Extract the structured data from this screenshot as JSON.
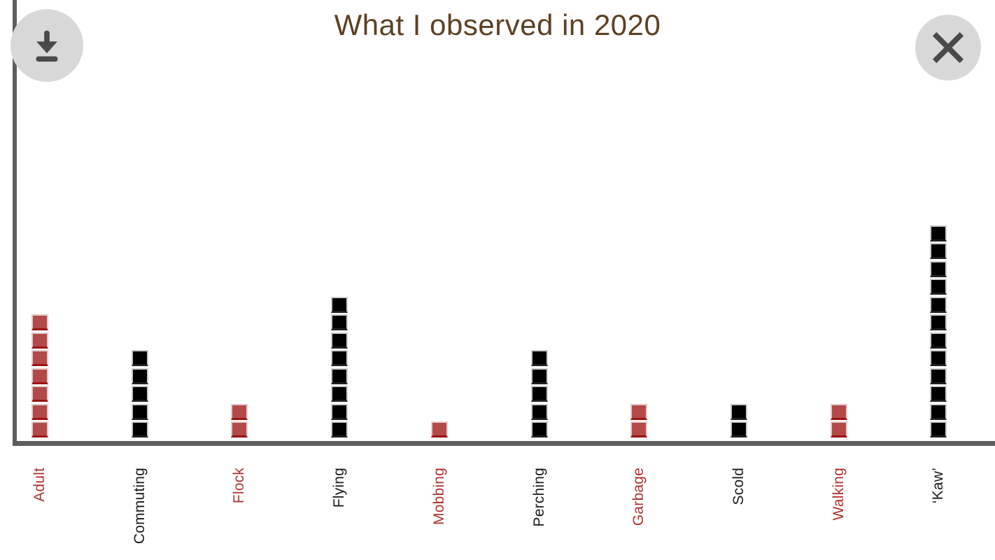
{
  "title": {
    "text": "What I observed in 2020"
  },
  "toolbar": {
    "download_button": {
      "icon": "download-icon"
    },
    "close_button": {
      "icon": "close-icon"
    }
  },
  "colors": {
    "title": "#5d4123",
    "axis": "#5e5e5e",
    "button_bg": "#d8d8d8",
    "button_icon": "#4a4a4a",
    "unit_red": "#b34a48",
    "unit_red_border": "#e4cccc",
    "unit_red_bottom": "#9e1313",
    "unit_black": "#000000",
    "unit_black_border": "#cccccc",
    "label_red": "#b13030",
    "label_black": "#1a1a1a",
    "background": "#ffffff"
  },
  "chart_data": {
    "type": "bar",
    "variant": "stacked-unit-squares",
    "title": "What I observed in 2020",
    "xlabel": "",
    "ylabel": "",
    "ylim": [
      0,
      12
    ],
    "grid": false,
    "legend": false,
    "categories": [
      "Adult",
      "Commuting",
      "Flock",
      "Flying",
      "Mobbing",
      "Perching",
      "Garbage",
      "Scold",
      "Walking",
      "‘Kaw’"
    ],
    "values": [
      7,
      5,
      2,
      8,
      1,
      5,
      2,
      2,
      2,
      12
    ],
    "bar_colors": [
      "red",
      "black",
      "red",
      "black",
      "red",
      "black",
      "red",
      "black",
      "red",
      "black"
    ],
    "label_colors": [
      "red",
      "black",
      "red",
      "black",
      "red",
      "black",
      "red",
      "black",
      "red",
      "black"
    ]
  }
}
